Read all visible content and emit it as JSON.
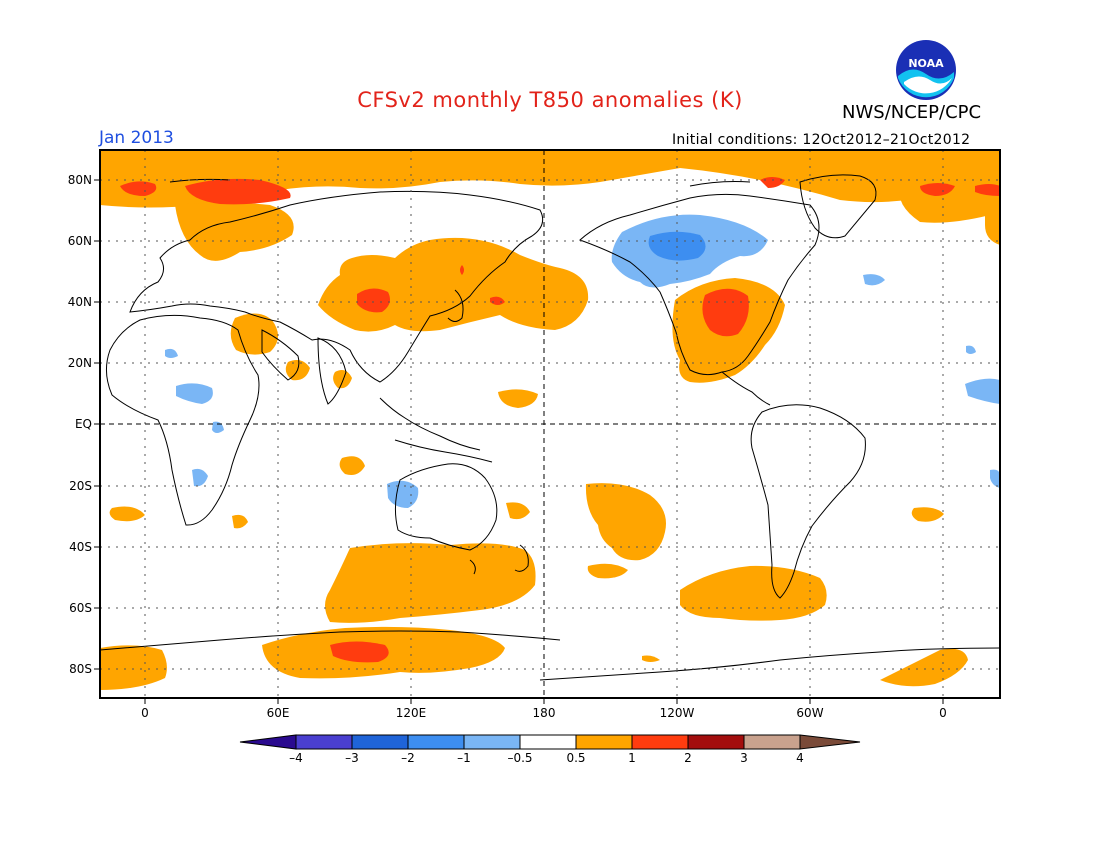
{
  "header": {
    "title": "CFSv2 monthly T850 anomalies (K)",
    "agency": "NWS/NCEP/CPC",
    "logo_text": "NOAA",
    "valid_month": "Jan 2013",
    "initial_conditions": "Initial conditions: 12Oct2012–21Oct2012"
  },
  "axes": {
    "lat_labels": [
      "80N",
      "60N",
      "40N",
      "20N",
      "EQ",
      "20S",
      "40S",
      "60S",
      "80S"
    ],
    "lon_labels": [
      "0",
      "60E",
      "120E",
      "180",
      "120W",
      "60W",
      "0"
    ]
  },
  "colorbar": {
    "labels": [
      "–4",
      "–3",
      "–2",
      "–1",
      "–0.5",
      "0.5",
      "1",
      "2",
      "3",
      "4"
    ],
    "colors": [
      "#2a0a8f",
      "#4a3fd0",
      "#1f64d8",
      "#3d8ef0",
      "#7ab6f5",
      "#ffffff",
      "#ffa500",
      "#ff3c0f",
      "#a30d0d",
      "#c9a28e",
      "#7a4a38"
    ]
  },
  "colors": {
    "warm_0_5_1": "#ffa500",
    "warm_1_2": "#ff3c0f",
    "cool_m1_m0_5": "#7ab6f5",
    "cool_m2_m1": "#3d8ef0",
    "coast": "#000000",
    "title": "#e2231a",
    "month": "#1f4fe0"
  }
}
